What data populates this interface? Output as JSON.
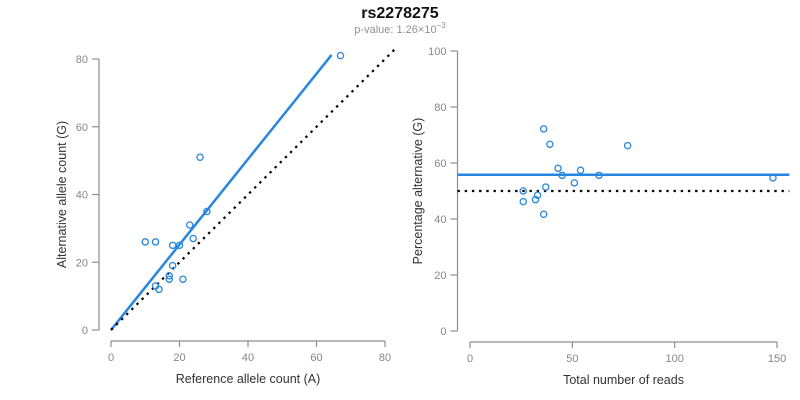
{
  "header": {
    "title": "rs2278275",
    "subtitle_base": "p-value: 1.26×10",
    "subtitle_exponent": "−3"
  },
  "colors": {
    "accent_blue": "#2787E0",
    "dotted_line": "#000000",
    "axis_gray": "#8E8E8E",
    "tick_text": "#878787",
    "axis_title_text": "#333333",
    "subtitle_gray": "#909090",
    "title_black": "#111111"
  },
  "chart_data": [
    {
      "type": "scatter",
      "panel": "left",
      "xlabel": "Reference allele count (A)",
      "ylabel": "Alternative allele count (G)",
      "xlim": [
        0,
        80
      ],
      "ylim": [
        0,
        80
      ],
      "xticks": [
        0,
        20,
        40,
        60,
        80
      ],
      "yticks": [
        0,
        20,
        40,
        60,
        80
      ],
      "grid": false,
      "legend": "none",
      "point_color": "#2787E0",
      "points": [
        [
          10,
          26
        ],
        [
          13,
          26
        ],
        [
          13,
          13
        ],
        [
          14,
          12
        ],
        [
          17,
          16
        ],
        [
          17,
          15
        ],
        [
          18,
          19
        ],
        [
          18,
          25
        ],
        [
          20,
          25
        ],
        [
          21,
          15
        ],
        [
          23,
          31
        ],
        [
          24,
          27
        ],
        [
          26,
          51
        ],
        [
          28,
          35
        ],
        [
          67,
          81
        ]
      ],
      "lines": [
        {
          "name": "fit-line",
          "style": "solid",
          "color": "#2787E0",
          "width": 2.5,
          "from": [
            0,
            0
          ],
          "to": [
            64.4,
            81.2
          ]
        },
        {
          "name": "identity-line",
          "style": "dotted",
          "color": "#000000",
          "width": 2.2,
          "from": [
            0,
            0
          ],
          "to": [
            83,
            83
          ]
        }
      ]
    },
    {
      "type": "scatter",
      "panel": "right",
      "xlabel": "Total number of reads",
      "ylabel": "Percentage alternative (G)",
      "xlim": [
        0,
        150
      ],
      "ylim": [
        0,
        100
      ],
      "xticks": [
        0,
        50,
        100,
        150
      ],
      "yticks": [
        0,
        20,
        40,
        60,
        80,
        100
      ],
      "grid": false,
      "legend": "none",
      "point_color": "#2787E0",
      "points": [
        [
          36,
          72.2
        ],
        [
          39,
          66.7
        ],
        [
          26,
          50
        ],
        [
          26,
          46.2
        ],
        [
          32,
          46.9
        ],
        [
          33,
          48.5
        ],
        [
          36,
          41.7
        ],
        [
          37,
          51.4
        ],
        [
          43,
          58.1
        ],
        [
          45,
          55.6
        ],
        [
          51,
          52.9
        ],
        [
          54,
          57.4
        ],
        [
          63,
          55.6
        ],
        [
          77,
          66.2
        ],
        [
          148,
          54.7
        ]
      ],
      "lines": [
        {
          "name": "fit-line",
          "style": "solid",
          "color": "#2787E0",
          "width": 2.6,
          "hline": 55.8,
          "span": "full"
        },
        {
          "name": "null-line",
          "style": "dotted",
          "color": "#000000",
          "width": 2.2,
          "hline": 50,
          "span": "full"
        }
      ]
    }
  ]
}
